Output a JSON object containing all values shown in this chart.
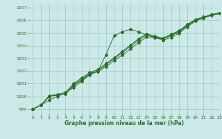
{
  "xlabel": "Graphe pression niveau de la mer (hPa)",
  "background_color": "#cce8e8",
  "grid_color": "#99ccbb",
  "line_color": "#2d6e2d",
  "xlim": [
    -0.5,
    23
  ],
  "ylim": [
    998.6,
    1007.4
  ],
  "yticks": [
    999,
    1000,
    1001,
    1002,
    1003,
    1004,
    1005,
    1006,
    1007
  ],
  "xticks": [
    0,
    1,
    2,
    3,
    4,
    5,
    6,
    7,
    8,
    9,
    10,
    11,
    12,
    13,
    14,
    15,
    16,
    17,
    18,
    19,
    20,
    21,
    22,
    23
  ],
  "line1": [
    999.0,
    999.3,
    999.7,
    1000.0,
    1000.25,
    1000.7,
    1001.2,
    1001.7,
    1002.0,
    1003.3,
    1004.8,
    1005.1,
    1005.3,
    1005.1,
    1004.85,
    1004.65,
    1004.45,
    1004.65,
    1005.0,
    1005.5,
    1005.95,
    1006.2,
    1006.45,
    1006.6
  ],
  "line2": [
    999.0,
    999.3,
    1000.0,
    1000.1,
    1000.2,
    1000.85,
    1001.3,
    1001.75,
    1001.95,
    1002.35,
    1002.85,
    1003.25,
    1003.75,
    1004.25,
    1004.7,
    1004.65,
    1004.55,
    1004.8,
    1005.1,
    1005.6,
    1006.0,
    1006.2,
    1006.4,
    1006.55
  ],
  "line3": [
    999.0,
    999.3,
    1000.0,
    1000.1,
    1000.2,
    1000.9,
    1001.35,
    1001.8,
    1002.0,
    1002.5,
    1003.0,
    1003.45,
    1003.95,
    1004.45,
    1004.85,
    1004.7,
    1004.55,
    1004.85,
    1005.15,
    1005.65,
    1006.05,
    1006.25,
    1006.45,
    1006.58
  ],
  "line4": [
    999.0,
    999.3,
    1000.05,
    1000.15,
    1000.3,
    1001.0,
    1001.45,
    1001.9,
    1002.1,
    1002.6,
    1003.05,
    1003.55,
    1004.05,
    1004.55,
    1004.95,
    1004.75,
    1004.6,
    1004.9,
    1005.2,
    1005.68,
    1006.08,
    1006.28,
    1006.48,
    1006.6
  ]
}
